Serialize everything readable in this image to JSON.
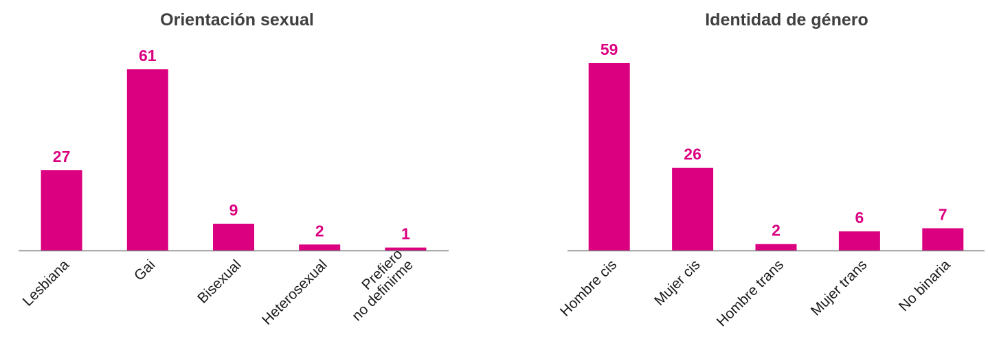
{
  "chart_data": [
    {
      "type": "bar",
      "title": "Orientación sexual",
      "categories": [
        "Lesbiana",
        "Gai",
        "Bisexual",
        "Heterosexual",
        "Prefiero\nno definirme"
      ],
      "values": [
        27,
        61,
        9,
        2,
        1
      ],
      "xlabel": "",
      "ylabel": "",
      "ylim": [
        0,
        61
      ],
      "grid": false,
      "y_axis_visible": false,
      "data_labels": true,
      "bar_color": "#db007f",
      "axis_color": "#808080"
    },
    {
      "type": "bar",
      "title": "Identidad de género",
      "categories": [
        "Hombre cis",
        "Mujer cis",
        "Hombre trans",
        "Mujer trans",
        "No binaria"
      ],
      "values": [
        59,
        26,
        2,
        6,
        7
      ],
      "xlabel": "",
      "ylabel": "",
      "ylim": [
        0,
        59
      ],
      "grid": false,
      "y_axis_visible": false,
      "data_labels": true,
      "bar_color": "#db007f",
      "axis_color": "#808080"
    }
  ]
}
